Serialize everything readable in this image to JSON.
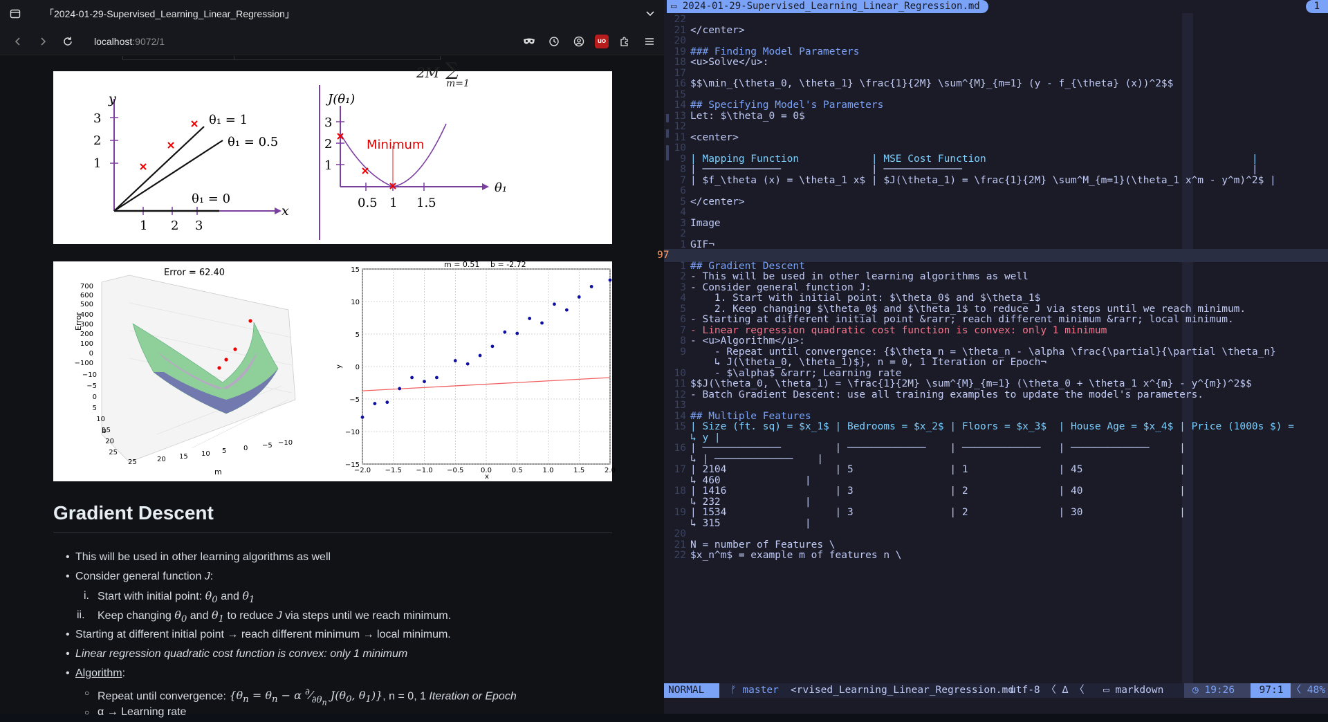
{
  "browser": {
    "tab_title": "「2024-01-29-Supervised_Learning_Linear_Regression」",
    "url_host": "localhost",
    "url_rest": ":9072/1",
    "icons": [
      "tabs-icon",
      "back-icon",
      "forward-icon",
      "reload-icon",
      "mask-icon",
      "history-icon",
      "account-icon",
      "ublock-icon",
      "extensions-icon",
      "menu-icon",
      "chevron-down-icon"
    ]
  },
  "fig1": {
    "left": {
      "y_axis": "y",
      "x_axis": "x",
      "y_ticks": [
        "3",
        "2",
        "1"
      ],
      "x_ticks": [
        "1",
        "2",
        "3"
      ],
      "line_labels": [
        "θ₁ = 1",
        "θ₁ = 0.5",
        "θ₁ = 0"
      ]
    },
    "right": {
      "y_axis": "J(θ₁)",
      "x_axis": "θ₁",
      "y_ticks": [
        "3",
        "2",
        "1"
      ],
      "x_ticks": [
        "0.5",
        "1",
        "1.5"
      ],
      "minimum_label": "Minimum"
    },
    "top_fragment": "2M",
    "sum_sub": "m=1"
  },
  "fig2": {
    "left_title": "Error = 62.40",
    "left_z_label": "Error",
    "left_z_ticks": [
      "700",
      "600",
      "500",
      "400",
      "300",
      "200",
      "100",
      "0",
      "−100"
    ],
    "left_b_ticks": [
      "−10",
      "−5",
      "0",
      "5",
      "10",
      "15",
      "20",
      "25"
    ],
    "left_m_ticks": [
      "25",
      "20",
      "15",
      "10",
      "5",
      "0",
      "−5",
      "−10"
    ],
    "left_b_label": "b",
    "left_m_label": "m",
    "right_title_m": "m = 0.51",
    "right_title_b": "b = -2.72",
    "right_x_label": "x",
    "right_y_label": "y",
    "right_x_ticks": [
      "−2.0",
      "−1.5",
      "−1.0",
      "−0.5",
      "0.0",
      "0.5",
      "1.0",
      "1.5",
      "2.0"
    ],
    "right_y_ticks": [
      "15",
      "10",
      "5",
      "0",
      "−5",
      "−10",
      "−15"
    ]
  },
  "chart_data": {
    "type": "scatter",
    "title": "m = 0.51    b = -2.72",
    "xlabel": "x",
    "ylabel": "y",
    "xlim": [
      -2.0,
      2.0
    ],
    "ylim": [
      -15,
      15
    ],
    "x": [
      -2.0,
      -1.8,
      -1.6,
      -1.4,
      -1.2,
      -1.0,
      -0.8,
      -0.5,
      -0.3,
      -0.1,
      0.1,
      0.3,
      0.5,
      0.7,
      0.9,
      1.1,
      1.3,
      1.5,
      1.7,
      2.0
    ],
    "y": [
      -7.8,
      -5.7,
      -5.5,
      -3.4,
      -1.7,
      -2.3,
      -1.7,
      0.9,
      0.4,
      1.7,
      3.1,
      5.3,
      5.1,
      7.4,
      6.7,
      9.6,
      8.7,
      10.7,
      12.3,
      13.3
    ],
    "fit_line": {
      "m": 0.51,
      "b": -2.72
    }
  },
  "article": {
    "heading": "Gradient Descent",
    "items": [
      "This will be used in other learning algorithms as well",
      "Consider general function J:",
      "Start with initial point: θ₀ and θ₁",
      "Keep changing θ₀ and θ₁ to reduce J via steps until we reach minimum.",
      "Starting at different initial point → reach different minimum → local minimum.",
      "Linear regression quadratic cost function is convex: only 1 minimum",
      "Algorithm:",
      "Repeat until convergence: {θn = θn − α ∂/∂θn J(θ0, θ1)}, n = 0, 1 Iteration or Epoch",
      "α → Learning rate"
    ],
    "item_prefixes": {
      "consider": "Consider general function ",
      "consider_fn": "J",
      "start": "Start with initial point: ",
      "keep_a": "Keep changing ",
      "keep_b": " to reduce ",
      "keep_c": " via steps until we reach minimum.",
      "and": " and ",
      "algorithm": "Algorithm",
      "repeat": "Repeat until convergence: ",
      "repeat_mid": ", n = 0, 1 ",
      "repeat_it": "Iteration or Epoch",
      "numerals": [
        "i.",
        "ii."
      ]
    }
  },
  "editor": {
    "buffer_name": "2024-01-29-Supervised_Learning_Linear_Regression.md",
    "buffer_num": "1",
    "lines": [
      {
        "no": "22",
        "t": ""
      },
      {
        "no": "21",
        "t": "</center>"
      },
      {
        "no": "20",
        "t": ""
      },
      {
        "no": "19",
        "t": "### Finding Model Parameters",
        "c": "h"
      },
      {
        "no": "18",
        "t": "<u>Solve</u>:"
      },
      {
        "no": "17",
        "t": ""
      },
      {
        "no": "16",
        "t": "$$\\min_{\\theta_0, \\theta_1} \\frac{1}{2M} \\sum^{M}_{m=1} (y - f_{\\theta} (x))^2$$"
      },
      {
        "no": "15",
        "t": ""
      },
      {
        "no": "14",
        "t": "## Specifying Model's Parameters",
        "c": "h"
      },
      {
        "no": "13",
        "t": "Let: $\\theta_0 = 0$"
      },
      {
        "no": "12",
        "t": ""
      },
      {
        "no": "11",
        "t": "<center>"
      },
      {
        "no": "10",
        "t": ""
      },
      {
        "no": "9",
        "t": "| Mapping Function            | MSE Cost Function                                            |",
        "c": "b"
      },
      {
        "no": "8",
        "t": "| ─────────────               | ─────────────                                                |"
      },
      {
        "no": "7",
        "t": "| $f_\\theta (x) = \\theta_1 x$ | $J(\\theta_1) = \\frac{1}{2M} \\sum^M_{m=1}(\\theta_1 x^m - y^m)^2$ |"
      },
      {
        "no": "6",
        "t": ""
      },
      {
        "no": "5",
        "t": "</center>"
      },
      {
        "no": "4",
        "t": ""
      },
      {
        "no": "3",
        "t": "Image"
      },
      {
        "no": "2",
        "t": ""
      },
      {
        "no": "1",
        "t": "GIF¬"
      },
      {
        "no": "97",
        "t": "",
        "cur": true
      },
      {
        "no": "1",
        "t": "## Gradient Descent",
        "c": "h"
      },
      {
        "no": "2",
        "t": "- This will be used in other learning algorithms as well"
      },
      {
        "no": "3",
        "t": "- Consider general function J:"
      },
      {
        "no": "4",
        "t": "    1. Start with initial point: $\\theta_0$ and $\\theta_1$"
      },
      {
        "no": "5",
        "t": "    2. Keep changing $\\theta_0$ and $\\theta_1$ to reduce J via steps until we reach minimum."
      },
      {
        "no": "6",
        "t": "- Starting at different initial point &rarr; reach different minimum &rarr; local minimum."
      },
      {
        "no": "7",
        "t": "- Linear regression quadratic cost function is convex: only 1 minimum",
        "c": "r"
      },
      {
        "no": "8",
        "t": "- <u>Algorithm</u>:"
      },
      {
        "no": "9",
        "t": "    - Repeat until convergence: {$\\theta_n = \\theta_n - \\alpha \\frac{\\partial}{\\partial \\theta_n}"
      },
      {
        "no": "",
        "t": "    ↳ J(\\theta_0, \\theta_1)$}, n = 0, 1 Iteration or Epoch¬"
      },
      {
        "no": "10",
        "t": "    - $\\alpha$ &rarr; Learning rate"
      },
      {
        "no": "11",
        "t": "$$J(\\theta_0, \\theta_1) = \\frac{1}{2M} \\sum^{M}_{m=1} (\\theta_0 + \\theta_1 x^{m} - y^{m})^2$$"
      },
      {
        "no": "12",
        "t": "- Batch Gradient Descent: use all training examples to update the model's parameters."
      },
      {
        "no": "13",
        "t": ""
      },
      {
        "no": "14",
        "t": "## Multiple Features",
        "c": "h"
      },
      {
        "no": "15",
        "t": "| Size (ft. sq) = $x_1$ | Bedrooms = $x_2$ | Floors = $x_3$  | House Age = $x_4$ | Price (1000s $) =",
        "c": "b"
      },
      {
        "no": "",
        "t": "↳ y |",
        "c": "b"
      },
      {
        "no": "16",
        "t": "| ─────────────         | ─────────────    | ─────────────   | ─────────────     |"
      },
      {
        "no": "",
        "t": "↳ | ─────────────    |"
      },
      {
        "no": "17",
        "t": "| 2104                  | 5                | 1               | 45                |"
      },
      {
        "no": "",
        "t": "↳ 460              |"
      },
      {
        "no": "18",
        "t": "| 1416                  | 3                | 2               | 40                |"
      },
      {
        "no": "",
        "t": "↳ 232              |"
      },
      {
        "no": "19",
        "t": "| 1534                  | 3                | 2               | 30                |"
      },
      {
        "no": "",
        "t": "↳ 315              |"
      },
      {
        "no": "20",
        "t": ""
      },
      {
        "no": "21",
        "t": "N = number of Features \\"
      },
      {
        "no": "22",
        "t": "$x_n^m$ = example m of features n \\"
      }
    ],
    "status": {
      "mode": "NORMAL",
      "branch": "ᚠ master",
      "file": "<rvised_Learning_Linear_Regression.md",
      "encoding": "utf-8 〈 ∆ 〈",
      "filetype": "▭ markdown",
      "time": "◷ 19:26",
      "position": "97:1",
      "percent": "〈 48%"
    }
  }
}
